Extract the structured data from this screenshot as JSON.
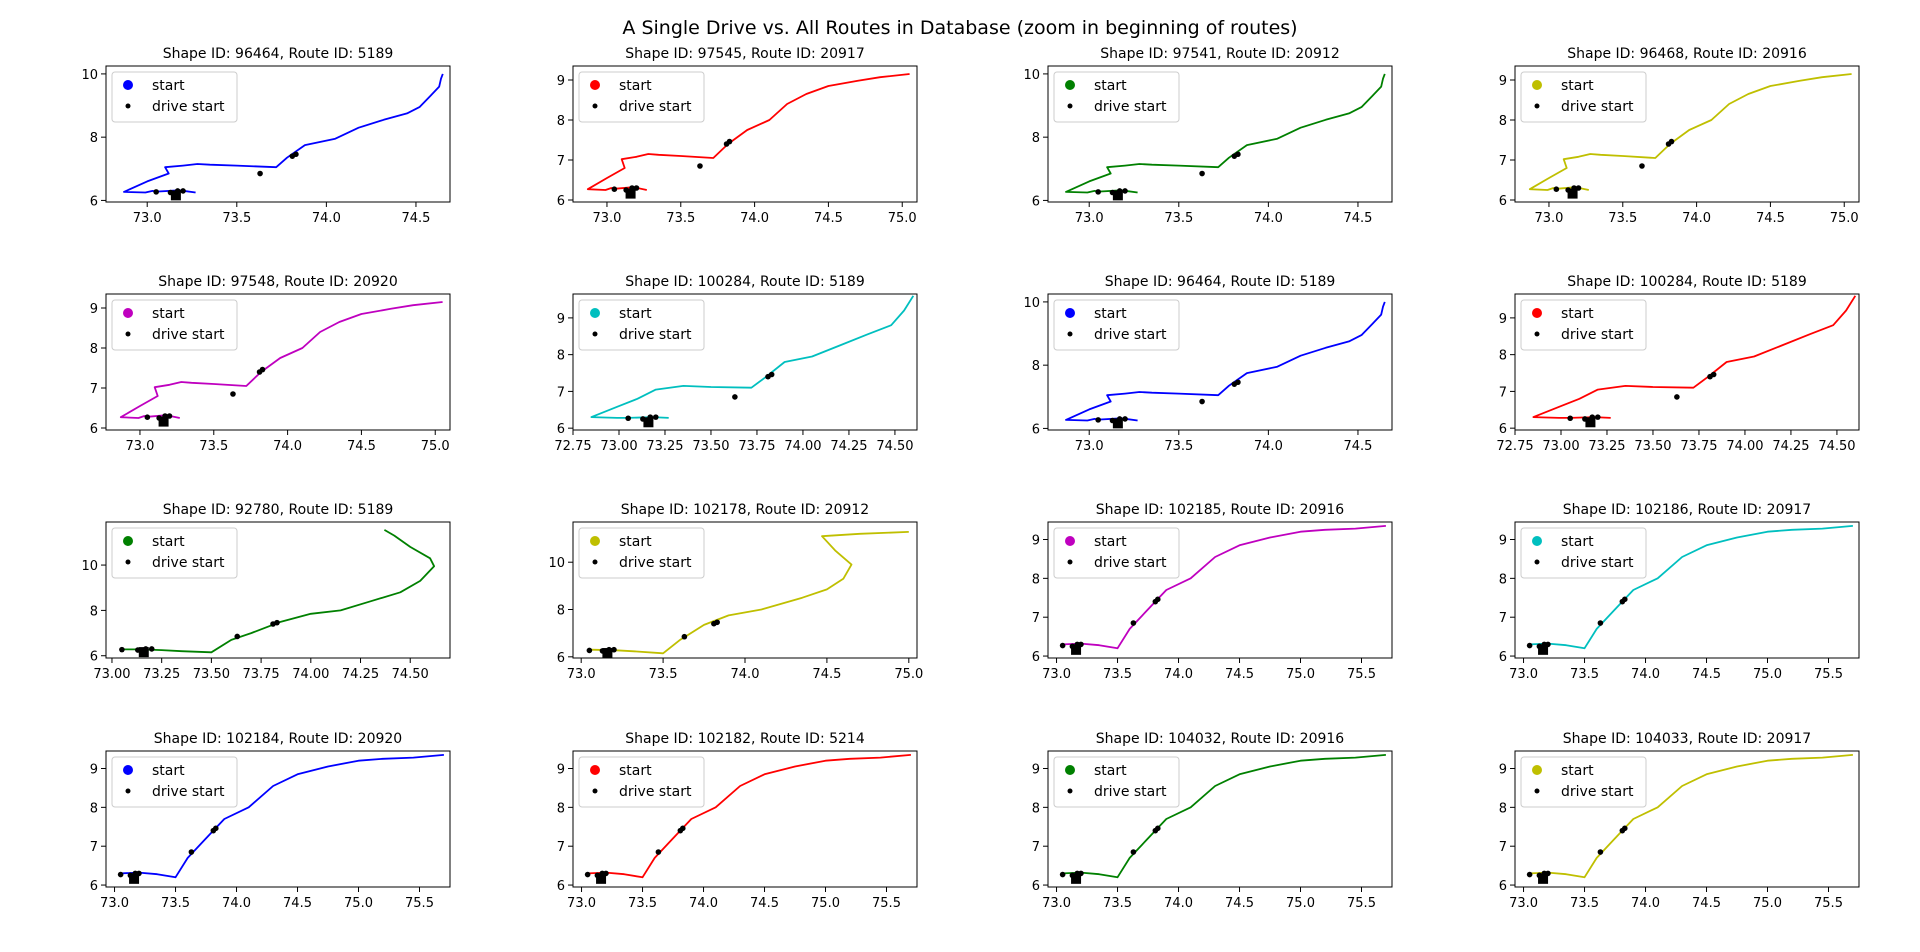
{
  "figure_title": "A Single Drive vs. All Routes in Database (zoom in beginning of routes)",
  "legend_labels": {
    "start": "start",
    "drive_start": "drive start"
  },
  "drive_start_points": [
    [
      73.05,
      6.27
    ],
    [
      73.13,
      6.25
    ],
    [
      73.2,
      6.3
    ],
    [
      73.17,
      6.3
    ],
    [
      73.63,
      6.85
    ],
    [
      73.81,
      7.4
    ],
    [
      73.83,
      7.46
    ]
  ],
  "chart_data": [
    {
      "type": "line",
      "title": "Shape ID: 96464, Route ID: 5189",
      "color": "#0000ff",
      "xlim": [
        72.77,
        74.69
      ],
      "ylim": [
        5.95,
        10.25
      ],
      "xticks": [
        73.0,
        73.5,
        74.0,
        74.5
      ],
      "xtick_labels": [
        "73.0",
        "73.5",
        "74.0",
        "74.5"
      ],
      "yticks": [
        6,
        8,
        10
      ],
      "ytick_labels": [
        "6",
        "8",
        "10"
      ],
      "x": [
        73.27,
        73.18,
        73.05,
        73.03,
        72.99,
        72.87,
        73.0,
        73.12,
        73.1,
        73.2,
        73.28,
        73.35,
        73.5,
        73.72,
        73.78,
        73.88,
        74.05,
        74.18,
        74.32,
        74.45,
        74.52,
        74.58,
        74.63,
        74.64,
        74.65
      ],
      "y": [
        6.25,
        6.32,
        6.28,
        6.3,
        6.25,
        6.27,
        6.6,
        6.85,
        7.05,
        7.1,
        7.15,
        7.13,
        7.1,
        7.05,
        7.35,
        7.75,
        7.95,
        8.3,
        8.55,
        8.75,
        8.95,
        9.3,
        9.6,
        9.85,
        10.0
      ]
    },
    {
      "type": "line",
      "title": "Shape ID: 97545, Route ID: 20917",
      "color": "#ff0000",
      "xlim": [
        72.77,
        75.1
      ],
      "ylim": [
        5.95,
        9.35
      ],
      "xticks": [
        73.0,
        73.5,
        74.0,
        74.5,
        75.0
      ],
      "xtick_labels": [
        "73.0",
        "73.5",
        "74.0",
        "74.5",
        "75.0"
      ],
      "yticks": [
        6,
        7,
        8,
        9
      ],
      "ytick_labels": [
        "6",
        "7",
        "8",
        "9"
      ],
      "x": [
        73.27,
        73.18,
        73.05,
        73.03,
        72.99,
        72.87,
        73.0,
        73.12,
        73.1,
        73.2,
        73.28,
        73.35,
        73.5,
        73.72,
        73.82,
        73.95,
        74.1,
        74.22,
        74.35,
        74.5,
        74.7,
        74.85,
        75.05
      ],
      "y": [
        6.25,
        6.32,
        6.28,
        6.3,
        6.25,
        6.27,
        6.55,
        6.8,
        7.02,
        7.08,
        7.15,
        7.13,
        7.1,
        7.05,
        7.4,
        7.75,
        8.0,
        8.4,
        8.65,
        8.85,
        8.98,
        9.07,
        9.15
      ]
    },
    {
      "type": "line",
      "title": "Shape ID: 97541, Route ID: 20912",
      "color": "#008000",
      "xlim": [
        72.77,
        74.69
      ],
      "ylim": [
        5.95,
        10.25
      ],
      "xticks": [
        73.0,
        73.5,
        74.0,
        74.5
      ],
      "xtick_labels": [
        "73.0",
        "73.5",
        "74.0",
        "74.5"
      ],
      "yticks": [
        6,
        8,
        10
      ],
      "ytick_labels": [
        "6",
        "8",
        "10"
      ],
      "x": [
        73.27,
        73.18,
        73.05,
        73.03,
        72.99,
        72.87,
        73.0,
        73.12,
        73.1,
        73.2,
        73.28,
        73.35,
        73.5,
        73.72,
        73.78,
        73.88,
        74.05,
        74.18,
        74.32,
        74.45,
        74.52,
        74.58,
        74.63,
        74.64,
        74.65
      ],
      "y": [
        6.25,
        6.32,
        6.28,
        6.3,
        6.25,
        6.27,
        6.6,
        6.85,
        7.05,
        7.1,
        7.15,
        7.13,
        7.1,
        7.05,
        7.35,
        7.75,
        7.95,
        8.3,
        8.55,
        8.75,
        8.95,
        9.3,
        9.6,
        9.85,
        10.0
      ]
    },
    {
      "type": "line",
      "title": "Shape ID: 96468, Route ID: 20916",
      "color": "#bfbf00",
      "xlim": [
        72.77,
        75.1
      ],
      "ylim": [
        5.95,
        9.35
      ],
      "xticks": [
        73.0,
        73.5,
        74.0,
        74.5,
        75.0
      ],
      "xtick_labels": [
        "73.0",
        "73.5",
        "74.0",
        "74.5",
        "75.0"
      ],
      "yticks": [
        6,
        7,
        8,
        9
      ],
      "ytick_labels": [
        "6",
        "7",
        "8",
        "9"
      ],
      "x": [
        73.27,
        73.18,
        73.05,
        73.03,
        72.99,
        72.87,
        73.0,
        73.12,
        73.1,
        73.2,
        73.28,
        73.35,
        73.5,
        73.72,
        73.82,
        73.95,
        74.1,
        74.22,
        74.35,
        74.5,
        74.7,
        74.85,
        75.05
      ],
      "y": [
        6.25,
        6.32,
        6.28,
        6.3,
        6.25,
        6.27,
        6.55,
        6.8,
        7.02,
        7.08,
        7.15,
        7.13,
        7.1,
        7.05,
        7.4,
        7.75,
        8.0,
        8.4,
        8.65,
        8.85,
        8.98,
        9.07,
        9.15
      ]
    },
    {
      "type": "line",
      "title": "Shape ID: 97548, Route ID: 20920",
      "color": "#bf00bf",
      "xlim": [
        72.77,
        75.1
      ],
      "ylim": [
        5.95,
        9.35
      ],
      "xticks": [
        73.0,
        73.5,
        74.0,
        74.5,
        75.0
      ],
      "xtick_labels": [
        "73.0",
        "73.5",
        "74.0",
        "74.5",
        "75.0"
      ],
      "yticks": [
        6,
        7,
        8,
        9
      ],
      "ytick_labels": [
        "6",
        "7",
        "8",
        "9"
      ],
      "x": [
        73.27,
        73.18,
        73.05,
        73.03,
        72.99,
        72.87,
        73.0,
        73.12,
        73.1,
        73.2,
        73.28,
        73.35,
        73.5,
        73.72,
        73.82,
        73.95,
        74.1,
        74.22,
        74.35,
        74.5,
        74.7,
        74.85,
        75.05
      ],
      "y": [
        6.25,
        6.32,
        6.28,
        6.3,
        6.25,
        6.27,
        6.55,
        6.8,
        7.02,
        7.08,
        7.15,
        7.13,
        7.1,
        7.05,
        7.4,
        7.75,
        8.0,
        8.4,
        8.65,
        8.85,
        8.98,
        9.07,
        9.15
      ]
    },
    {
      "type": "line",
      "title": "Shape ID: 100284, Route ID: 5189",
      "color": "#00bfbf",
      "xlim": [
        72.75,
        74.62
      ],
      "ylim": [
        5.95,
        9.65
      ],
      "xticks": [
        72.75,
        73.0,
        73.25,
        73.5,
        73.75,
        74.0,
        74.25,
        74.5
      ],
      "xtick_labels": [
        "72.75",
        "73.00",
        "73.25",
        "73.50",
        "73.75",
        "74.00",
        "74.25",
        "74.50"
      ],
      "yticks": [
        6,
        7,
        8,
        9
      ],
      "ytick_labels": [
        "6",
        "7",
        "8",
        "9"
      ],
      "x": [
        73.27,
        73.18,
        73.05,
        72.99,
        72.85,
        73.0,
        73.1,
        73.2,
        73.35,
        73.5,
        73.72,
        73.8,
        73.9,
        74.05,
        74.2,
        74.35,
        74.48,
        74.55,
        74.6
      ],
      "y": [
        6.28,
        6.3,
        6.28,
        6.28,
        6.3,
        6.6,
        6.8,
        7.05,
        7.15,
        7.12,
        7.1,
        7.4,
        7.8,
        7.95,
        8.25,
        8.55,
        8.8,
        9.2,
        9.6
      ]
    },
    {
      "type": "line",
      "title": "Shape ID: 96464, Route ID: 5189",
      "color": "#0000ff",
      "xlim": [
        72.77,
        74.69
      ],
      "ylim": [
        5.95,
        10.25
      ],
      "xticks": [
        73.0,
        73.5,
        74.0,
        74.5
      ],
      "xtick_labels": [
        "73.0",
        "73.5",
        "74.0",
        "74.5"
      ],
      "yticks": [
        6,
        8,
        10
      ],
      "ytick_labels": [
        "6",
        "8",
        "10"
      ],
      "x": [
        73.27,
        73.18,
        73.05,
        73.03,
        72.99,
        72.87,
        73.0,
        73.12,
        73.1,
        73.2,
        73.28,
        73.35,
        73.5,
        73.72,
        73.78,
        73.88,
        74.05,
        74.18,
        74.32,
        74.45,
        74.52,
        74.58,
        74.63,
        74.64,
        74.65
      ],
      "y": [
        6.25,
        6.32,
        6.28,
        6.3,
        6.25,
        6.27,
        6.6,
        6.85,
        7.05,
        7.1,
        7.15,
        7.13,
        7.1,
        7.05,
        7.35,
        7.75,
        7.95,
        8.3,
        8.55,
        8.75,
        8.95,
        9.3,
        9.6,
        9.85,
        10.0
      ]
    },
    {
      "type": "line",
      "title": "Shape ID: 100284, Route ID: 5189",
      "color": "#ff0000",
      "xlim": [
        72.75,
        74.62
      ],
      "ylim": [
        5.95,
        9.65
      ],
      "xticks": [
        72.75,
        73.0,
        73.25,
        73.5,
        73.75,
        74.0,
        74.25,
        74.5
      ],
      "xtick_labels": [
        "72.75",
        "73.00",
        "73.25",
        "73.50",
        "73.75",
        "74.00",
        "74.25",
        "74.50"
      ],
      "yticks": [
        6,
        7,
        8,
        9
      ],
      "ytick_labels": [
        "6",
        "7",
        "8",
        "9"
      ],
      "x": [
        73.27,
        73.18,
        73.05,
        72.99,
        72.85,
        73.0,
        73.1,
        73.2,
        73.35,
        73.5,
        73.72,
        73.8,
        73.9,
        74.05,
        74.2,
        74.35,
        74.48,
        74.55,
        74.6
      ],
      "y": [
        6.28,
        6.3,
        6.28,
        6.28,
        6.3,
        6.6,
        6.8,
        7.05,
        7.15,
        7.12,
        7.1,
        7.4,
        7.8,
        7.95,
        8.25,
        8.55,
        8.8,
        9.2,
        9.6
      ]
    },
    {
      "type": "line",
      "title": "Shape ID: 92780, Route ID: 5189",
      "color": "#008000",
      "xlim": [
        72.97,
        74.7
      ],
      "ylim": [
        5.9,
        11.9
      ],
      "xticks": [
        73.0,
        73.25,
        73.5,
        73.75,
        74.0,
        74.25,
        74.5
      ],
      "xtick_labels": [
        "73.00",
        "73.25",
        "73.50",
        "73.75",
        "74.00",
        "74.25",
        "74.50"
      ],
      "yticks": [
        6,
        8,
        10
      ],
      "ytick_labels": [
        "6",
        "8",
        "10"
      ],
      "x": [
        73.05,
        73.15,
        73.25,
        73.35,
        73.5,
        73.6,
        73.7,
        73.85,
        74.0,
        74.15,
        74.3,
        74.45,
        74.55,
        74.62,
        74.6,
        74.5,
        74.42,
        74.37
      ],
      "y": [
        6.28,
        6.28,
        6.25,
        6.2,
        6.15,
        6.7,
        7.0,
        7.5,
        7.85,
        8.0,
        8.4,
        8.8,
        9.3,
        9.95,
        10.3,
        10.8,
        11.3,
        11.55
      ]
    },
    {
      "type": "line",
      "title": "Shape ID: 102178, Route ID: 20912",
      "color": "#bfbf00",
      "xlim": [
        72.95,
        75.05
      ],
      "ylim": [
        5.95,
        11.7
      ],
      "xticks": [
        73.0,
        73.5,
        74.0,
        74.5,
        75.0
      ],
      "xtick_labels": [
        "73.0",
        "73.5",
        "74.0",
        "74.5",
        "75.0"
      ],
      "yticks": [
        6,
        8,
        10
      ],
      "ytick_labels": [
        "6",
        "8",
        "10"
      ],
      "x": [
        73.05,
        73.2,
        73.35,
        73.5,
        73.6,
        73.75,
        73.9,
        74.1,
        74.35,
        74.5,
        74.6,
        74.65,
        74.55,
        74.47,
        74.7,
        75.0
      ],
      "y": [
        6.3,
        6.28,
        6.22,
        6.15,
        6.7,
        7.35,
        7.75,
        8.0,
        8.5,
        8.85,
        9.3,
        9.9,
        10.5,
        11.1,
        11.2,
        11.28
      ]
    },
    {
      "type": "line",
      "title": "Shape ID: 102185, Route ID: 20916",
      "color": "#bf00bf",
      "xlim": [
        72.93,
        75.75
      ],
      "ylim": [
        5.95,
        9.45
      ],
      "xticks": [
        73.0,
        73.5,
        74.0,
        74.5,
        75.0,
        75.5
      ],
      "xtick_labels": [
        "73.0",
        "73.5",
        "74.0",
        "74.5",
        "75.0",
        "75.5"
      ],
      "yticks": [
        6,
        7,
        8,
        9
      ],
      "ytick_labels": [
        "6",
        "7",
        "8",
        "9"
      ],
      "x": [
        73.05,
        73.2,
        73.35,
        73.5,
        73.6,
        73.75,
        73.9,
        74.1,
        74.3,
        74.5,
        74.75,
        75.0,
        75.2,
        75.45,
        75.7
      ],
      "y": [
        6.3,
        6.32,
        6.28,
        6.2,
        6.7,
        7.2,
        7.7,
        8.0,
        8.55,
        8.85,
        9.05,
        9.2,
        9.25,
        9.28,
        9.35
      ]
    },
    {
      "type": "line",
      "title": "Shape ID: 102186, Route ID: 20917",
      "color": "#00bfbf",
      "xlim": [
        72.93,
        75.75
      ],
      "ylim": [
        5.95,
        9.45
      ],
      "xticks": [
        73.0,
        73.5,
        74.0,
        74.5,
        75.0,
        75.5
      ],
      "xtick_labels": [
        "73.0",
        "73.5",
        "74.0",
        "74.5",
        "75.0",
        "75.5"
      ],
      "yticks": [
        6,
        7,
        8,
        9
      ],
      "ytick_labels": [
        "6",
        "7",
        "8",
        "9"
      ],
      "x": [
        73.05,
        73.2,
        73.35,
        73.5,
        73.6,
        73.75,
        73.9,
        74.1,
        74.3,
        74.5,
        74.75,
        75.0,
        75.2,
        75.45,
        75.7
      ],
      "y": [
        6.3,
        6.32,
        6.28,
        6.2,
        6.7,
        7.2,
        7.7,
        8.0,
        8.55,
        8.85,
        9.05,
        9.2,
        9.25,
        9.28,
        9.35
      ]
    },
    {
      "type": "line",
      "title": "Shape ID: 102184, Route ID: 20920",
      "color": "#0000ff",
      "xlim": [
        72.93,
        75.75
      ],
      "ylim": [
        5.95,
        9.45
      ],
      "xticks": [
        73.0,
        73.5,
        74.0,
        74.5,
        75.0,
        75.5
      ],
      "xtick_labels": [
        "73.0",
        "73.5",
        "74.0",
        "74.5",
        "75.0",
        "75.5"
      ],
      "yticks": [
        6,
        7,
        8,
        9
      ],
      "ytick_labels": [
        "6",
        "7",
        "8",
        "9"
      ],
      "x": [
        73.05,
        73.2,
        73.35,
        73.5,
        73.6,
        73.75,
        73.9,
        74.1,
        74.3,
        74.5,
        74.75,
        75.0,
        75.2,
        75.45,
        75.7
      ],
      "y": [
        6.3,
        6.32,
        6.28,
        6.2,
        6.7,
        7.2,
        7.7,
        8.0,
        8.55,
        8.85,
        9.05,
        9.2,
        9.25,
        9.28,
        9.35
      ]
    },
    {
      "type": "line",
      "title": "Shape ID: 102182, Route ID: 5214",
      "color": "#ff0000",
      "xlim": [
        72.93,
        75.75
      ],
      "ylim": [
        5.95,
        9.45
      ],
      "xticks": [
        73.0,
        73.5,
        74.0,
        74.5,
        75.0,
        75.5
      ],
      "xtick_labels": [
        "73.0",
        "73.5",
        "74.0",
        "74.5",
        "75.0",
        "75.5"
      ],
      "yticks": [
        6,
        7,
        8,
        9
      ],
      "ytick_labels": [
        "6",
        "7",
        "8",
        "9"
      ],
      "x": [
        73.05,
        73.2,
        73.35,
        73.5,
        73.6,
        73.75,
        73.9,
        74.1,
        74.3,
        74.5,
        74.75,
        75.0,
        75.2,
        75.45,
        75.7
      ],
      "y": [
        6.3,
        6.32,
        6.28,
        6.2,
        6.7,
        7.2,
        7.7,
        8.0,
        8.55,
        8.85,
        9.05,
        9.2,
        9.25,
        9.28,
        9.35
      ]
    },
    {
      "type": "line",
      "title": "Shape ID: 104032, Route ID: 20916",
      "color": "#008000",
      "xlim": [
        72.93,
        75.75
      ],
      "ylim": [
        5.95,
        9.45
      ],
      "xticks": [
        73.0,
        73.5,
        74.0,
        74.5,
        75.0,
        75.5
      ],
      "xtick_labels": [
        "73.0",
        "73.5",
        "74.0",
        "74.5",
        "75.0",
        "75.5"
      ],
      "yticks": [
        6,
        7,
        8,
        9
      ],
      "ytick_labels": [
        "6",
        "7",
        "8",
        "9"
      ],
      "x": [
        73.05,
        73.2,
        73.35,
        73.5,
        73.6,
        73.75,
        73.9,
        74.1,
        74.3,
        74.5,
        74.75,
        75.0,
        75.2,
        75.45,
        75.7
      ],
      "y": [
        6.3,
        6.32,
        6.28,
        6.2,
        6.7,
        7.2,
        7.7,
        8.0,
        8.55,
        8.85,
        9.05,
        9.2,
        9.25,
        9.28,
        9.35
      ]
    },
    {
      "type": "line",
      "title": "Shape ID: 104033, Route ID: 20917",
      "color": "#bfbf00",
      "xlim": [
        72.93,
        75.75
      ],
      "ylim": [
        5.95,
        9.45
      ],
      "xticks": [
        73.0,
        73.5,
        74.0,
        74.5,
        75.0,
        75.5
      ],
      "xtick_labels": [
        "73.0",
        "73.5",
        "74.0",
        "74.5",
        "75.0",
        "75.5"
      ],
      "yticks": [
        6,
        7,
        8,
        9
      ],
      "ytick_labels": [
        "6",
        "7",
        "8",
        "9"
      ],
      "x": [
        73.05,
        73.2,
        73.35,
        73.5,
        73.6,
        73.75,
        73.9,
        74.1,
        74.3,
        74.5,
        74.75,
        75.0,
        75.2,
        75.45,
        75.7
      ],
      "y": [
        6.3,
        6.32,
        6.28,
        6.2,
        6.7,
        7.2,
        7.7,
        8.0,
        8.55,
        8.85,
        9.05,
        9.2,
        9.25,
        9.28,
        9.35
      ]
    }
  ]
}
